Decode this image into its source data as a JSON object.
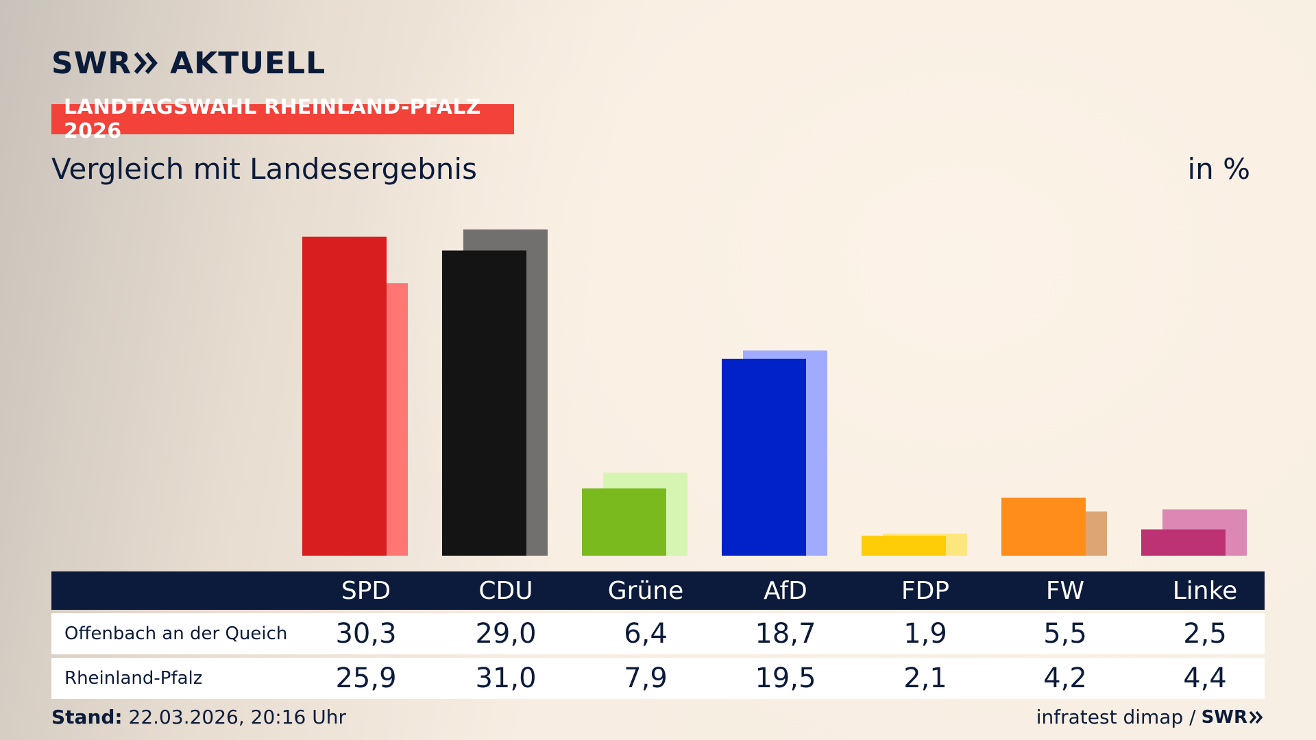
{
  "brand": {
    "logo_left": "SWR",
    "logo_right": "AKTUELL",
    "chevron_color": "#0b1b3a"
  },
  "badge": {
    "text": "LANDTAGSWAHL RHEINLAND-PFALZ 2026",
    "color": "#f2423a"
  },
  "subtitle": "Vergleich mit Landesergebnis",
  "unit": "in %",
  "chart_data": {
    "type": "bar",
    "categories": [
      "SPD",
      "CDU",
      "Grüne",
      "AfD",
      "FDP",
      "FW",
      "Linke"
    ],
    "series": [
      {
        "name": "Offenbach an der Queich",
        "values": [
          30.3,
          29.0,
          6.4,
          18.7,
          1.9,
          5.5,
          2.5
        ]
      },
      {
        "name": "Rheinland-Pfalz",
        "values": [
          25.9,
          31.0,
          7.9,
          19.5,
          2.1,
          4.2,
          4.4
        ]
      }
    ],
    "colors_primary": [
      "#d81e1e",
      "#141414",
      "#7aba1e",
      "#0022c8",
      "#fecd07",
      "#ff8d1a",
      "#bc3272"
    ],
    "colors_secondary": [
      "#ff7672",
      "#72706e",
      "#d6f5b2",
      "#a0abfd",
      "#fee67e",
      "#dca674",
      "#dd88b4"
    ],
    "ylim": [
      0,
      33
    ],
    "legend": "none",
    "grid": false
  },
  "table": {
    "headers": [
      "SPD",
      "CDU",
      "Grüne",
      "AfD",
      "FDP",
      "FW",
      "Linke"
    ],
    "rows": [
      {
        "label": "Offenbach an der Queich",
        "values": [
          "30,3",
          "29,0",
          "6,4",
          "18,7",
          "1,9",
          "5,5",
          "2,5"
        ]
      },
      {
        "label": "Rheinland-Pfalz",
        "values": [
          "25,9",
          "31,0",
          "7,9",
          "19,5",
          "2,1",
          "4,2",
          "4,4"
        ]
      }
    ]
  },
  "footer": {
    "stand_label": "Stand:",
    "stand_value": "22.03.2026, 20:16 Uhr",
    "source": "infratest dimap /",
    "source_brand": "SWR"
  }
}
